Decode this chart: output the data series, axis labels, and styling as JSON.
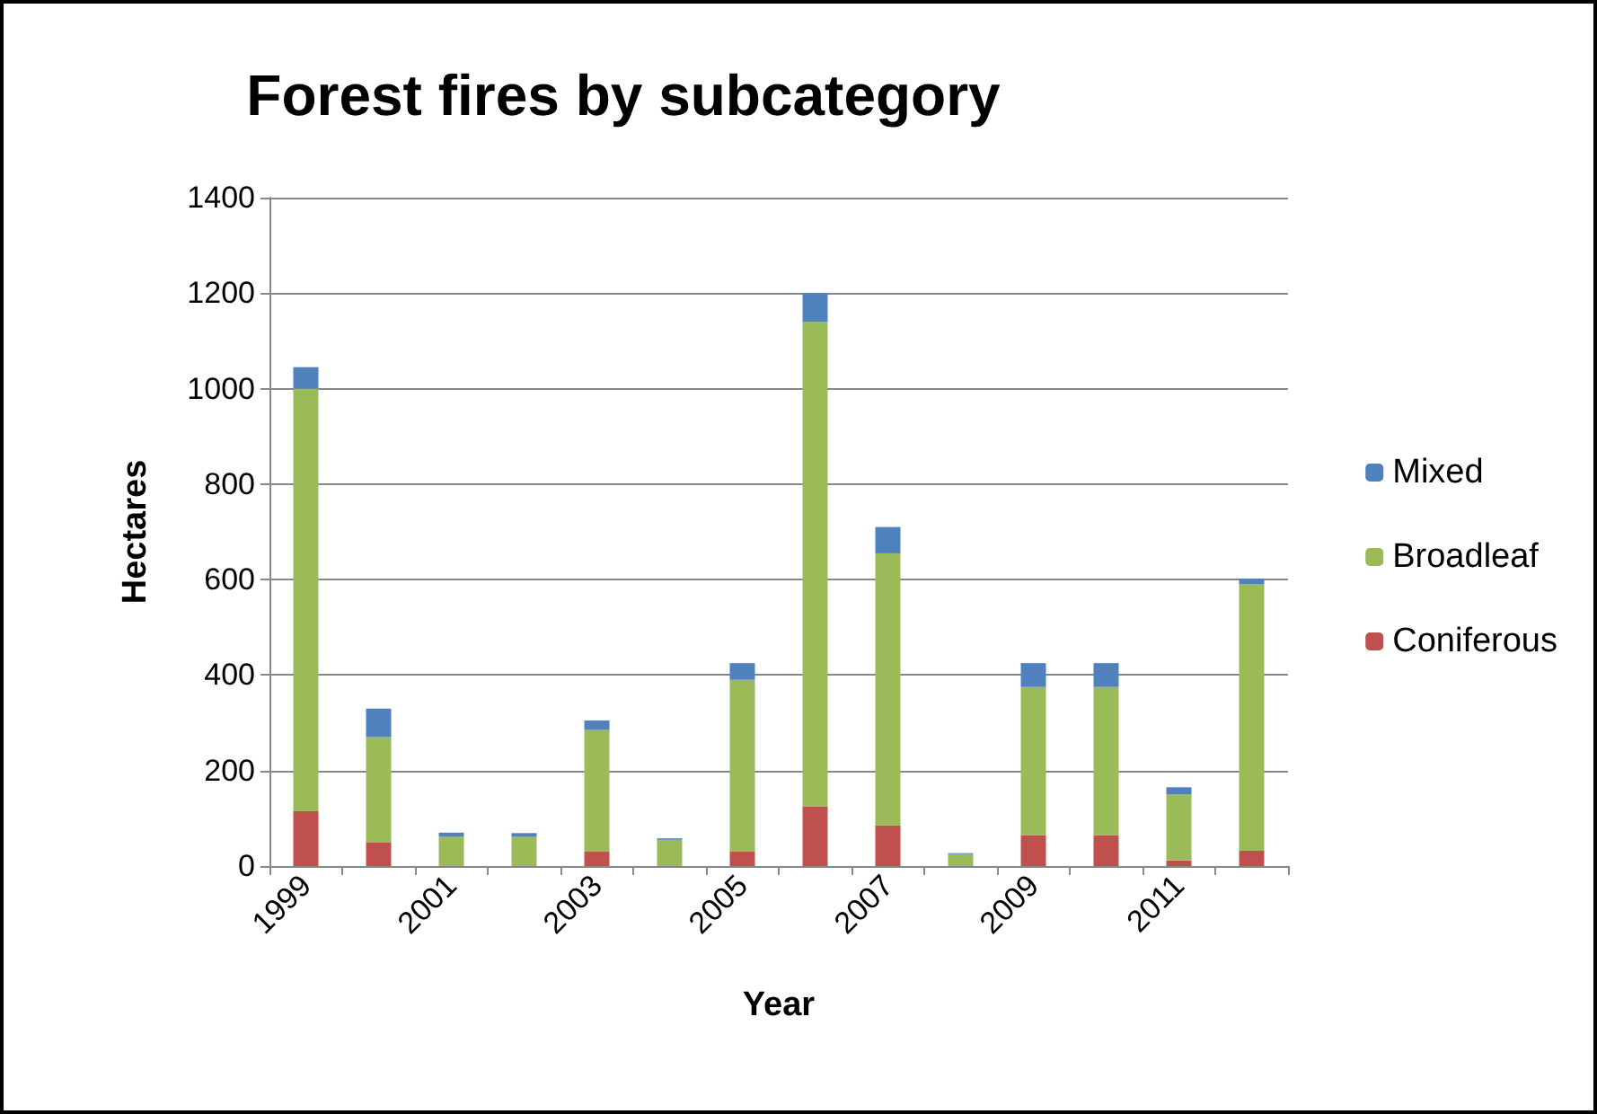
{
  "chart_data": {
    "type": "bar",
    "title": "Forest fires by subcategory",
    "xlabel": "Year",
    "ylabel": "Hectares",
    "categories": [
      "1999",
      null,
      "2001",
      null,
      "2003",
      null,
      "2005",
      null,
      "2007",
      null,
      "2009",
      null,
      "2011",
      null
    ],
    "stacked": true,
    "ylim": [
      0,
      1400
    ],
    "yticks": [
      0,
      200,
      400,
      600,
      800,
      1000,
      1200,
      1400
    ],
    "grid": "y",
    "legend": "right",
    "series": [
      {
        "name": "Coniferous",
        "color": "#c0504d",
        "values": [
          115,
          50,
          null,
          null,
          30,
          null,
          30,
          125,
          85,
          null,
          65,
          65,
          12,
          32
        ]
      },
      {
        "name": "Broadleaf",
        "color": "#9bbb59",
        "values": [
          885,
          220,
          62,
          62,
          255,
          55,
          360,
          1015,
          570,
          25,
          310,
          310,
          138,
          558
        ]
      },
      {
        "name": "Mixed",
        "color": "#4f81bd",
        "values": [
          45,
          60,
          8,
          7,
          20,
          3,
          35,
          60,
          55,
          2,
          50,
          50,
          15,
          12
        ]
      }
    ]
  }
}
